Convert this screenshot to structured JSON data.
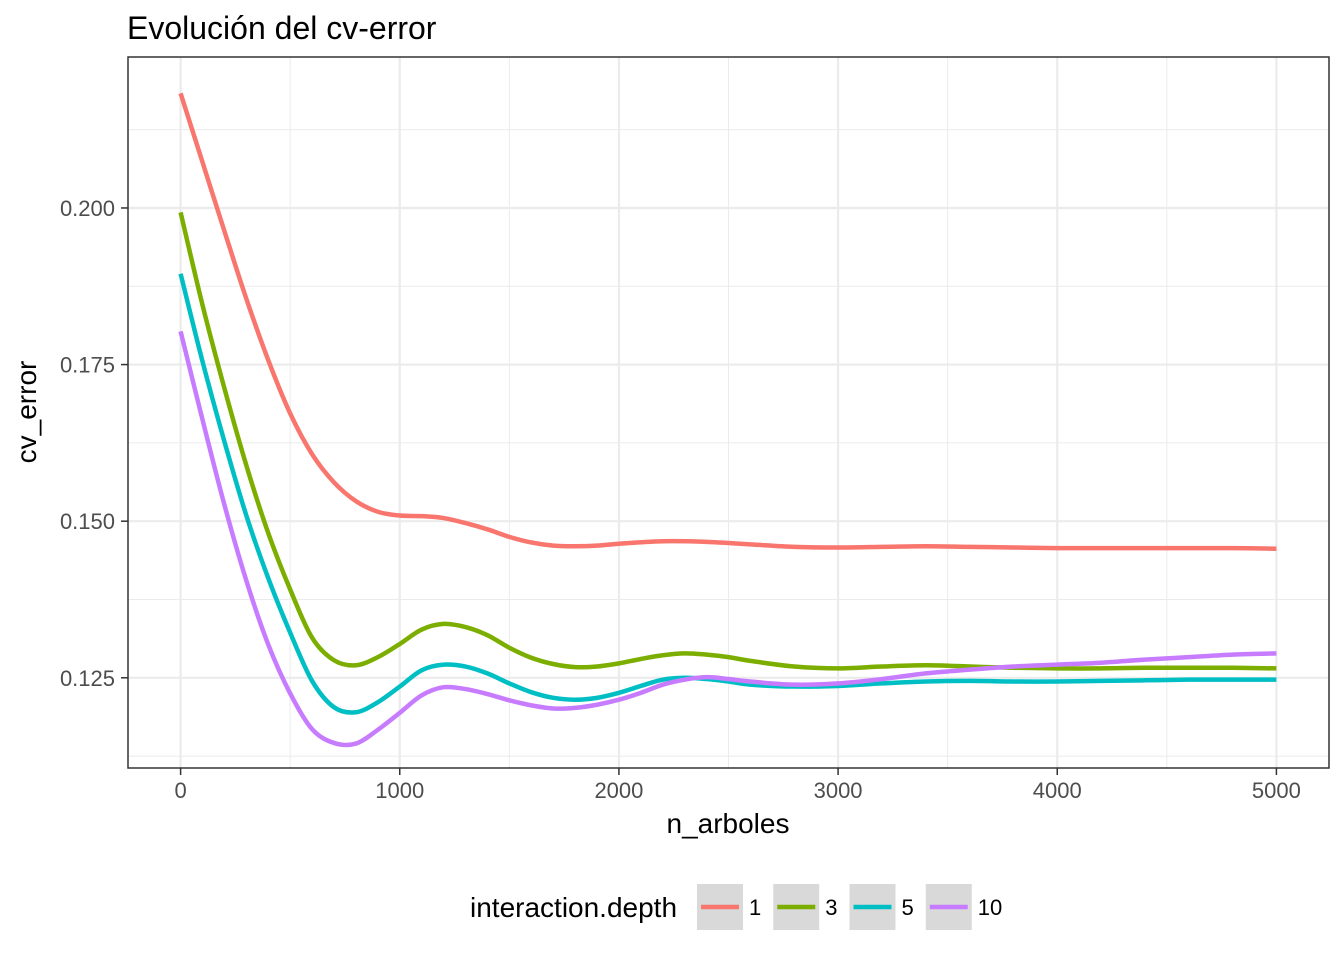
{
  "chart_data": {
    "type": "line",
    "title": "Evolución del cv-error",
    "xlabel": "n_arboles",
    "ylabel": "cv_error",
    "xlim": [
      -240,
      5240
    ],
    "ylim": [
      0.1106,
      0.2241
    ],
    "x_ticks": [
      0,
      1000,
      2000,
      3000,
      4000,
      5000
    ],
    "x_tick_labels": [
      "0",
      "1000",
      "2000",
      "3000",
      "4000",
      "5000"
    ],
    "y_ticks": [
      0.125,
      0.15,
      0.175,
      0.2
    ],
    "y_tick_labels": [
      "0.125",
      "0.150",
      "0.175",
      "0.200"
    ],
    "grid": true,
    "legend_title": "interaction.depth",
    "legend_position": "bottom",
    "series": [
      {
        "name": "1",
        "color": "#F8766D",
        "x": [
          0,
          100,
          200,
          300,
          400,
          500,
          600,
          700,
          800,
          900,
          1000,
          1100,
          1200,
          1300,
          1400,
          1500,
          1600,
          1700,
          1800,
          1900,
          2000,
          2200,
          2400,
          2600,
          2800,
          3000,
          3200,
          3400,
          3600,
          3800,
          4000,
          4200,
          4400,
          4600,
          4800,
          5000
        ],
        "values": [
          0.2183,
          0.2073,
          0.1963,
          0.1855,
          0.1757,
          0.1672,
          0.1607,
          0.1562,
          0.1532,
          0.1515,
          0.1509,
          0.1508,
          0.1505,
          0.1497,
          0.1487,
          0.1475,
          0.1466,
          0.1461,
          0.146,
          0.1461,
          0.1464,
          0.1468,
          0.1467,
          0.1463,
          0.1459,
          0.1458,
          0.1459,
          0.146,
          0.1459,
          0.1458,
          0.1457,
          0.1457,
          0.1457,
          0.1457,
          0.1457,
          0.1456
        ]
      },
      {
        "name": "3",
        "color": "#7CAE00",
        "x": [
          0,
          100,
          200,
          300,
          400,
          500,
          600,
          700,
          800,
          900,
          1000,
          1100,
          1200,
          1300,
          1400,
          1500,
          1600,
          1700,
          1800,
          1900,
          2000,
          2100,
          2200,
          2300,
          2400,
          2500,
          2600,
          2800,
          3000,
          3200,
          3400,
          3600,
          3800,
          4000,
          4200,
          4400,
          4600,
          4800,
          5000
        ],
        "values": [
          0.1993,
          0.1845,
          0.1712,
          0.1589,
          0.1481,
          0.1391,
          0.1314,
          0.1278,
          0.127,
          0.1283,
          0.1304,
          0.1327,
          0.1336,
          0.1331,
          0.1318,
          0.1298,
          0.1282,
          0.1272,
          0.1267,
          0.1268,
          0.1273,
          0.128,
          0.1286,
          0.1289,
          0.1287,
          0.1283,
          0.1277,
          0.1268,
          0.1265,
          0.1268,
          0.127,
          0.1268,
          0.1266,
          0.1265,
          0.1265,
          0.1266,
          0.1266,
          0.1266,
          0.1265
        ]
      },
      {
        "name": "5",
        "color": "#00BFC4",
        "x": [
          0,
          100,
          200,
          300,
          400,
          500,
          600,
          700,
          800,
          900,
          1000,
          1100,
          1200,
          1300,
          1400,
          1500,
          1600,
          1700,
          1800,
          1900,
          2000,
          2100,
          2200,
          2300,
          2400,
          2500,
          2600,
          2800,
          3000,
          3200,
          3400,
          3600,
          3800,
          4000,
          4200,
          4400,
          4600,
          4800,
          5000
        ],
        "values": [
          0.1895,
          0.1755,
          0.1627,
          0.1509,
          0.1409,
          0.1322,
          0.1245,
          0.1203,
          0.1195,
          0.1211,
          0.1236,
          0.1262,
          0.1271,
          0.1268,
          0.1257,
          0.1241,
          0.1227,
          0.1218,
          0.1215,
          0.1218,
          0.1226,
          0.1237,
          0.1247,
          0.125,
          0.1248,
          0.1244,
          0.1239,
          0.1236,
          0.1237,
          0.1241,
          0.1244,
          0.1245,
          0.1244,
          0.1244,
          0.1245,
          0.1246,
          0.1247,
          0.1247,
          0.1247
        ]
      },
      {
        "name": "10",
        "color": "#C77CFF",
        "x": [
          0,
          100,
          200,
          300,
          400,
          500,
          600,
          700,
          800,
          900,
          1000,
          1100,
          1200,
          1300,
          1400,
          1500,
          1600,
          1700,
          1800,
          1900,
          2000,
          2100,
          2200,
          2300,
          2400,
          2500,
          2600,
          2800,
          3000,
          3200,
          3400,
          3600,
          3800,
          4000,
          4200,
          4400,
          4600,
          4800,
          5000
        ],
        "values": [
          0.1803,
          0.1662,
          0.1526,
          0.1405,
          0.1303,
          0.1225,
          0.1168,
          0.1146,
          0.1145,
          0.1167,
          0.1194,
          0.1222,
          0.1235,
          0.1232,
          0.1224,
          0.1214,
          0.1206,
          0.1201,
          0.1202,
          0.1207,
          0.1215,
          0.1226,
          0.1239,
          0.1247,
          0.1251,
          0.1248,
          0.1244,
          0.1239,
          0.1241,
          0.1248,
          0.1257,
          0.1263,
          0.1268,
          0.1271,
          0.1274,
          0.1279,
          0.1283,
          0.1287,
          0.1289
        ]
      }
    ]
  }
}
